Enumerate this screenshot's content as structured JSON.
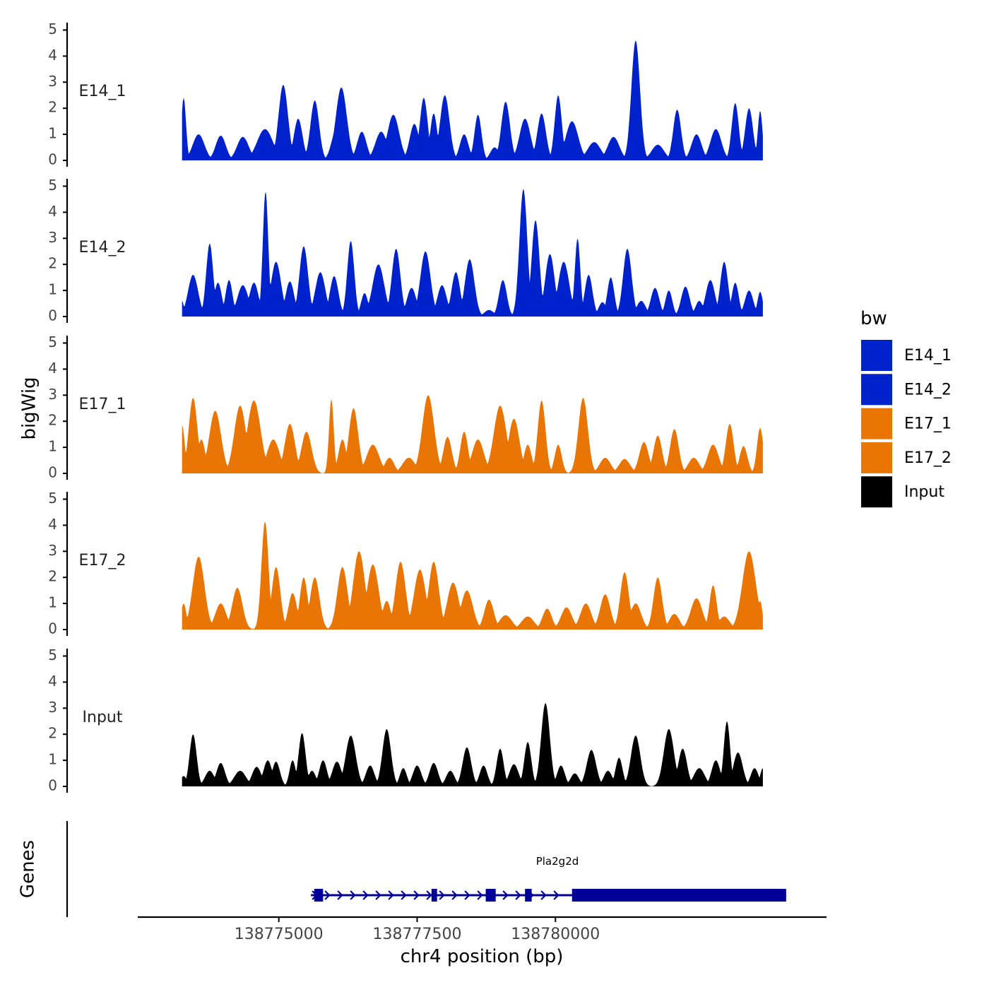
{
  "chart_data": {
    "type": "area",
    "ylabel": "bigWig",
    "xlabel": "chr4 position (bp)",
    "genes_label": "Genes",
    "legend": {
      "title": "bw",
      "items": [
        {
          "label": "E14_1",
          "color": "#0022cc"
        },
        {
          "label": "E14_2",
          "color": "#0022cc"
        },
        {
          "label": "E17_1",
          "color": "#e87504"
        },
        {
          "label": "E17_2",
          "color": "#e87504"
        },
        {
          "label": "Input",
          "color": "#000000"
        }
      ]
    },
    "x_range": [
      138772450,
      138784900
    ],
    "x_ticks": [
      {
        "value": 138775000,
        "label": "138775000"
      },
      {
        "value": 138777500,
        "label": "138777500"
      },
      {
        "value": 138780000,
        "label": "138780000"
      }
    ],
    "y_range": [
      0,
      5.2
    ],
    "y_ticks": [
      "0",
      "1",
      "2",
      "3",
      "4",
      "5"
    ],
    "data_x_range": [
      138773250,
      138783750
    ],
    "series": [
      {
        "name": "E14_1",
        "label": "E14_1",
        "color": "#0022cc",
        "peaks": [
          [
            138773280,
            2.4,
            60
          ],
          [
            138773550,
            1.0,
            150
          ],
          [
            138773950,
            0.95,
            130
          ],
          [
            138774350,
            0.9,
            150
          ],
          [
            138774750,
            1.2,
            200
          ],
          [
            138775080,
            2.9,
            120
          ],
          [
            138775350,
            1.6,
            110
          ],
          [
            138775650,
            2.3,
            110
          ],
          [
            138776050,
            1.25,
            130
          ],
          [
            138776130,
            2.8,
            140
          ],
          [
            138776500,
            1.1,
            120
          ],
          [
            138776850,
            1.1,
            150
          ],
          [
            138777070,
            1.75,
            150
          ],
          [
            138777450,
            1.4,
            120
          ],
          [
            138777620,
            2.4,
            100
          ],
          [
            138777800,
            1.8,
            90
          ],
          [
            138778000,
            2.5,
            120
          ],
          [
            138778350,
            1.0,
            110
          ],
          [
            138778600,
            1.75,
            90
          ],
          [
            138778900,
            0.5,
            110
          ],
          [
            138779100,
            2.25,
            110
          ],
          [
            138779450,
            1.6,
            140
          ],
          [
            138779750,
            1.8,
            110
          ],
          [
            138780050,
            2.5,
            90
          ],
          [
            138780300,
            1.5,
            160
          ],
          [
            138780700,
            0.7,
            170
          ],
          [
            138781050,
            0.9,
            150
          ],
          [
            138781450,
            4.6,
            110
          ],
          [
            138781850,
            0.6,
            160
          ],
          [
            138782200,
            1.95,
            100
          ],
          [
            138782550,
            1.0,
            130
          ],
          [
            138782900,
            1.2,
            140
          ],
          [
            138783250,
            2.2,
            90
          ],
          [
            138783500,
            2.0,
            100
          ],
          [
            138783700,
            1.9,
            60
          ]
        ]
      },
      {
        "name": "E14_2",
        "label": "E14_2",
        "color": "#0022cc",
        "peaks": [
          [
            138773250,
            0.6,
            50
          ],
          [
            138773450,
            1.6,
            130
          ],
          [
            138773750,
            2.8,
            90
          ],
          [
            138773900,
            1.3,
            100
          ],
          [
            138774100,
            1.4,
            90
          ],
          [
            138774350,
            1.2,
            140
          ],
          [
            138774550,
            1.3,
            120
          ],
          [
            138774760,
            4.8,
            70
          ],
          [
            138774950,
            2.1,
            130
          ],
          [
            138775200,
            1.35,
            110
          ],
          [
            138775450,
            2.7,
            110
          ],
          [
            138775750,
            1.7,
            130
          ],
          [
            138776000,
            1.55,
            110
          ],
          [
            138776300,
            2.9,
            90
          ],
          [
            138776550,
            0.9,
            90
          ],
          [
            138776800,
            2.0,
            150
          ],
          [
            138777120,
            2.6,
            110
          ],
          [
            138777400,
            1.1,
            120
          ],
          [
            138777650,
            2.5,
            130
          ],
          [
            138777950,
            1.2,
            120
          ],
          [
            138778200,
            1.7,
            110
          ],
          [
            138778450,
            2.2,
            120
          ],
          [
            138778800,
            0.25,
            120
          ],
          [
            138779050,
            1.4,
            100
          ],
          [
            138779420,
            4.9,
            100
          ],
          [
            138779640,
            3.7,
            100
          ],
          [
            138779900,
            2.4,
            120
          ],
          [
            138780150,
            2.1,
            140
          ],
          [
            138780400,
            3.0,
            70
          ],
          [
            138780600,
            1.6,
            100
          ],
          [
            138780850,
            0.55,
            100
          ],
          [
            138781000,
            1.5,
            90
          ],
          [
            138781300,
            2.6,
            110
          ],
          [
            138781550,
            0.6,
            120
          ],
          [
            138781800,
            1.1,
            110
          ],
          [
            138782050,
            1.0,
            90
          ],
          [
            138782350,
            1.15,
            110
          ],
          [
            138782600,
            0.6,
            100
          ],
          [
            138782800,
            1.4,
            120
          ],
          [
            138783050,
            2.1,
            100
          ],
          [
            138783250,
            1.3,
            90
          ],
          [
            138783500,
            1.0,
            110
          ],
          [
            138783700,
            0.95,
            70
          ]
        ]
      },
      {
        "name": "E17_1",
        "label": "E17_1",
        "color": "#e87504",
        "peaks": [
          [
            138773250,
            1.85,
            70
          ],
          [
            138773450,
            2.9,
            110
          ],
          [
            138773600,
            1.3,
            100
          ],
          [
            138773850,
            2.4,
            150
          ],
          [
            138774300,
            2.6,
            150
          ],
          [
            138774550,
            2.8,
            170
          ],
          [
            138774900,
            1.3,
            160
          ],
          [
            138775200,
            1.9,
            130
          ],
          [
            138775500,
            1.6,
            130
          ],
          [
            138775950,
            2.85,
            60
          ],
          [
            138776150,
            1.3,
            100
          ],
          [
            138776350,
            2.5,
            120
          ],
          [
            138776700,
            1.1,
            160
          ],
          [
            138777000,
            0.6,
            120
          ],
          [
            138777350,
            0.6,
            160
          ],
          [
            138777700,
            3.0,
            150
          ],
          [
            138778050,
            1.4,
            110
          ],
          [
            138778350,
            1.6,
            100
          ],
          [
            138778600,
            1.3,
            150
          ],
          [
            138779000,
            2.6,
            160
          ],
          [
            138779250,
            2.1,
            140
          ],
          [
            138779500,
            1.1,
            100
          ],
          [
            138779750,
            2.8,
            100
          ],
          [
            138780050,
            1.1,
            90
          ],
          [
            138780500,
            2.9,
            120
          ],
          [
            138780900,
            0.6,
            140
          ],
          [
            138781250,
            0.55,
            140
          ],
          [
            138781600,
            1.2,
            120
          ],
          [
            138781850,
            1.45,
            110
          ],
          [
            138782150,
            1.7,
            110
          ],
          [
            138782500,
            0.6,
            140
          ],
          [
            138782850,
            1.1,
            140
          ],
          [
            138783150,
            1.9,
            100
          ],
          [
            138783400,
            1.05,
            100
          ],
          [
            138783700,
            1.75,
            80
          ]
        ]
      },
      {
        "name": "E17_2",
        "label": "E17_2",
        "color": "#e87504",
        "peaks": [
          [
            138773280,
            1.0,
            70
          ],
          [
            138773550,
            2.8,
            150
          ],
          [
            138773950,
            1.0,
            140
          ],
          [
            138774250,
            1.6,
            130
          ],
          [
            138774750,
            4.15,
            90
          ],
          [
            138774950,
            2.4,
            110
          ],
          [
            138775250,
            1.4,
            110
          ],
          [
            138775450,
            2.0,
            100
          ],
          [
            138775650,
            2.0,
            120
          ],
          [
            138776150,
            2.4,
            130
          ],
          [
            138776450,
            3.0,
            150
          ],
          [
            138776700,
            2.5,
            150
          ],
          [
            138776950,
            1.1,
            110
          ],
          [
            138777200,
            2.6,
            130
          ],
          [
            138777550,
            2.3,
            150
          ],
          [
            138777800,
            2.6,
            130
          ],
          [
            138778150,
            1.8,
            150
          ],
          [
            138778400,
            1.5,
            150
          ],
          [
            138778800,
            1.15,
            120
          ],
          [
            138779100,
            0.55,
            160
          ],
          [
            138779500,
            0.5,
            160
          ],
          [
            138779850,
            0.8,
            120
          ],
          [
            138780200,
            0.85,
            140
          ],
          [
            138780550,
            1.0,
            140
          ],
          [
            138780900,
            1.35,
            130
          ],
          [
            138781250,
            2.2,
            110
          ],
          [
            138781450,
            1.0,
            140
          ],
          [
            138781850,
            2.0,
            110
          ],
          [
            138782150,
            0.6,
            130
          ],
          [
            138782550,
            1.2,
            150
          ],
          [
            138782850,
            1.7,
            90
          ],
          [
            138783050,
            0.5,
            140
          ],
          [
            138783500,
            3.0,
            170
          ],
          [
            138783700,
            1.1,
            60
          ]
        ]
      },
      {
        "name": "Input",
        "label": "Input",
        "color": "#000000",
        "peaks": [
          [
            138773280,
            0.4,
            80
          ],
          [
            138773450,
            2.0,
            90
          ],
          [
            138773750,
            0.6,
            120
          ],
          [
            138773950,
            0.9,
            110
          ],
          [
            138774300,
            0.6,
            150
          ],
          [
            138774600,
            0.75,
            120
          ],
          [
            138774800,
            1.0,
            110
          ],
          [
            138774950,
            0.95,
            100
          ],
          [
            138775250,
            1.0,
            80
          ],
          [
            138775420,
            2.05,
            90
          ],
          [
            138775600,
            0.6,
            100
          ],
          [
            138775800,
            1.0,
            100
          ],
          [
            138776050,
            0.95,
            120
          ],
          [
            138776300,
            1.95,
            130
          ],
          [
            138776650,
            0.8,
            110
          ],
          [
            138776950,
            2.2,
            110
          ],
          [
            138777250,
            0.7,
            90
          ],
          [
            138777500,
            0.8,
            110
          ],
          [
            138777800,
            0.9,
            110
          ],
          [
            138778100,
            0.6,
            110
          ],
          [
            138778400,
            1.5,
            110
          ],
          [
            138778700,
            0.8,
            100
          ],
          [
            138779000,
            1.45,
            90
          ],
          [
            138779250,
            0.85,
            120
          ],
          [
            138779500,
            1.7,
            90
          ],
          [
            138779820,
            3.2,
            110
          ],
          [
            138780100,
            0.8,
            100
          ],
          [
            138780350,
            0.5,
            110
          ],
          [
            138780650,
            1.4,
            120
          ],
          [
            138780950,
            0.6,
            110
          ],
          [
            138781150,
            1.1,
            90
          ],
          [
            138781450,
            1.95,
            120
          ],
          [
            138782050,
            2.2,
            130
          ],
          [
            138782300,
            1.45,
            110
          ],
          [
            138782600,
            0.7,
            140
          ],
          [
            138782900,
            1.0,
            110
          ],
          [
            138783100,
            2.5,
            80
          ],
          [
            138783300,
            1.3,
            120
          ],
          [
            138783600,
            0.7,
            100
          ],
          [
            138783750,
            0.7,
            70
          ]
        ]
      }
    ],
    "gene": {
      "name": "Pla2g2d",
      "color": "#000099",
      "start": 138775580,
      "end": 138784170,
      "exons": [
        {
          "start": 138775640,
          "end": 138775800
        },
        {
          "start": 138777760,
          "end": 138777860
        },
        {
          "start": 138778740,
          "end": 138778920
        },
        {
          "start": 138779450,
          "end": 138779570
        },
        {
          "start": 138780300,
          "end": 138784170
        }
      ]
    }
  }
}
